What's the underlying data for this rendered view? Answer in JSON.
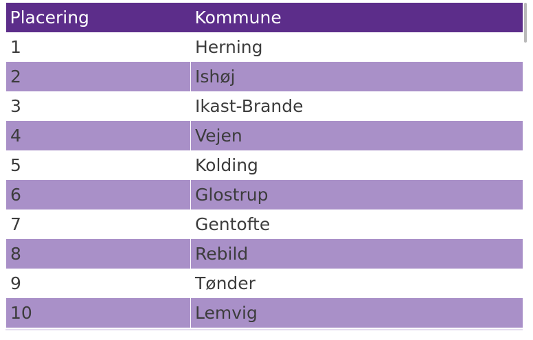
{
  "headers": {
    "col1": "Placering",
    "col2": "Kommune"
  },
  "rows": [
    {
      "rank": "1",
      "name": "Herning"
    },
    {
      "rank": "2",
      "name": "Ishøj"
    },
    {
      "rank": "3",
      "name": "Ikast-Brande"
    },
    {
      "rank": "4",
      "name": "Vejen"
    },
    {
      "rank": "5",
      "name": "Kolding"
    },
    {
      "rank": "6",
      "name": "Glostrup"
    },
    {
      "rank": "7",
      "name": "Gentofte"
    },
    {
      "rank": "8",
      "name": "Rebild"
    },
    {
      "rank": "9",
      "name": "Tønder"
    },
    {
      "rank": "10",
      "name": "Lemvig"
    }
  ],
  "colors": {
    "header": "#5c2d8a",
    "stripe": "#a990c8",
    "text": "#3c3c3c"
  }
}
